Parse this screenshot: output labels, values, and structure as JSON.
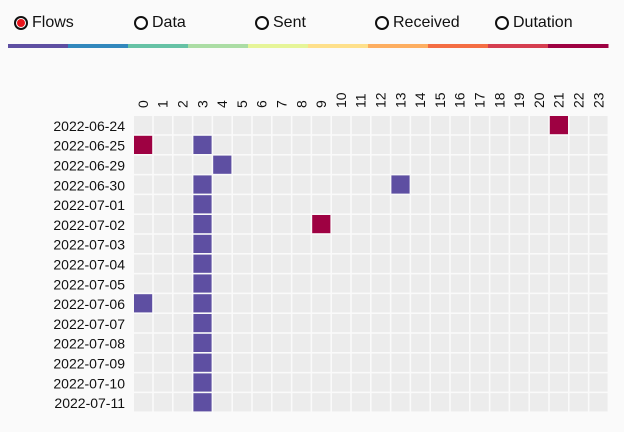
{
  "metric_options": [
    {
      "label": "Flows",
      "selected": true
    },
    {
      "label": "Data",
      "selected": false
    },
    {
      "label": "Sent",
      "selected": false
    },
    {
      "label": "Received",
      "selected": false
    },
    {
      "label": "Dutation",
      "selected": false
    }
  ],
  "legend_colors": [
    "#5e4fa2",
    "#3288bd",
    "#66c2a5",
    "#abdda4",
    "#e6f598",
    "#fee08b",
    "#fdae61",
    "#f46d43",
    "#d53e4f",
    "#9e0142"
  ],
  "chart_data": {
    "type": "heatmap",
    "title": "",
    "x": [
      "0",
      "1",
      "2",
      "3",
      "4",
      "5",
      "6",
      "7",
      "8",
      "9",
      "10",
      "11",
      "12",
      "13",
      "14",
      "15",
      "16",
      "17",
      "18",
      "19",
      "20",
      "21",
      "22",
      "23"
    ],
    "y": [
      "2022-06-24",
      "2022-06-25",
      "2022-06-29",
      "2022-06-30",
      "2022-07-01",
      "2022-07-02",
      "2022-07-03",
      "2022-07-04",
      "2022-07-05",
      "2022-07-06",
      "2022-07-07",
      "2022-07-08",
      "2022-07-09",
      "2022-07-10",
      "2022-07-11"
    ],
    "xlabel": "",
    "ylabel": "",
    "empty_color": "#ececec",
    "color_scale": [
      "#5e4fa2",
      "#3288bd",
      "#66c2a5",
      "#abdda4",
      "#e6f598",
      "#fee08b",
      "#fdae61",
      "#f46d43",
      "#d53e4f",
      "#9e0142"
    ],
    "value_range": [
      1,
      2
    ],
    "cells": [
      {
        "date": "2022-06-24",
        "hour": 21,
        "value": 2
      },
      {
        "date": "2022-06-25",
        "hour": 0,
        "value": 2
      },
      {
        "date": "2022-06-25",
        "hour": 3,
        "value": 1
      },
      {
        "date": "2022-06-29",
        "hour": 4,
        "value": 1
      },
      {
        "date": "2022-06-30",
        "hour": 3,
        "value": 1
      },
      {
        "date": "2022-06-30",
        "hour": 13,
        "value": 1
      },
      {
        "date": "2022-07-01",
        "hour": 3,
        "value": 1
      },
      {
        "date": "2022-07-02",
        "hour": 3,
        "value": 1
      },
      {
        "date": "2022-07-02",
        "hour": 9,
        "value": 2
      },
      {
        "date": "2022-07-03",
        "hour": 3,
        "value": 1
      },
      {
        "date": "2022-07-04",
        "hour": 3,
        "value": 1
      },
      {
        "date": "2022-07-05",
        "hour": 3,
        "value": 1
      },
      {
        "date": "2022-07-06",
        "hour": 0,
        "value": 1
      },
      {
        "date": "2022-07-06",
        "hour": 3,
        "value": 1
      },
      {
        "date": "2022-07-07",
        "hour": 3,
        "value": 1
      },
      {
        "date": "2022-07-08",
        "hour": 3,
        "value": 1
      },
      {
        "date": "2022-07-09",
        "hour": 3,
        "value": 1
      },
      {
        "date": "2022-07-10",
        "hour": 3,
        "value": 1
      },
      {
        "date": "2022-07-11",
        "hour": 3,
        "value": 1
      }
    ]
  }
}
